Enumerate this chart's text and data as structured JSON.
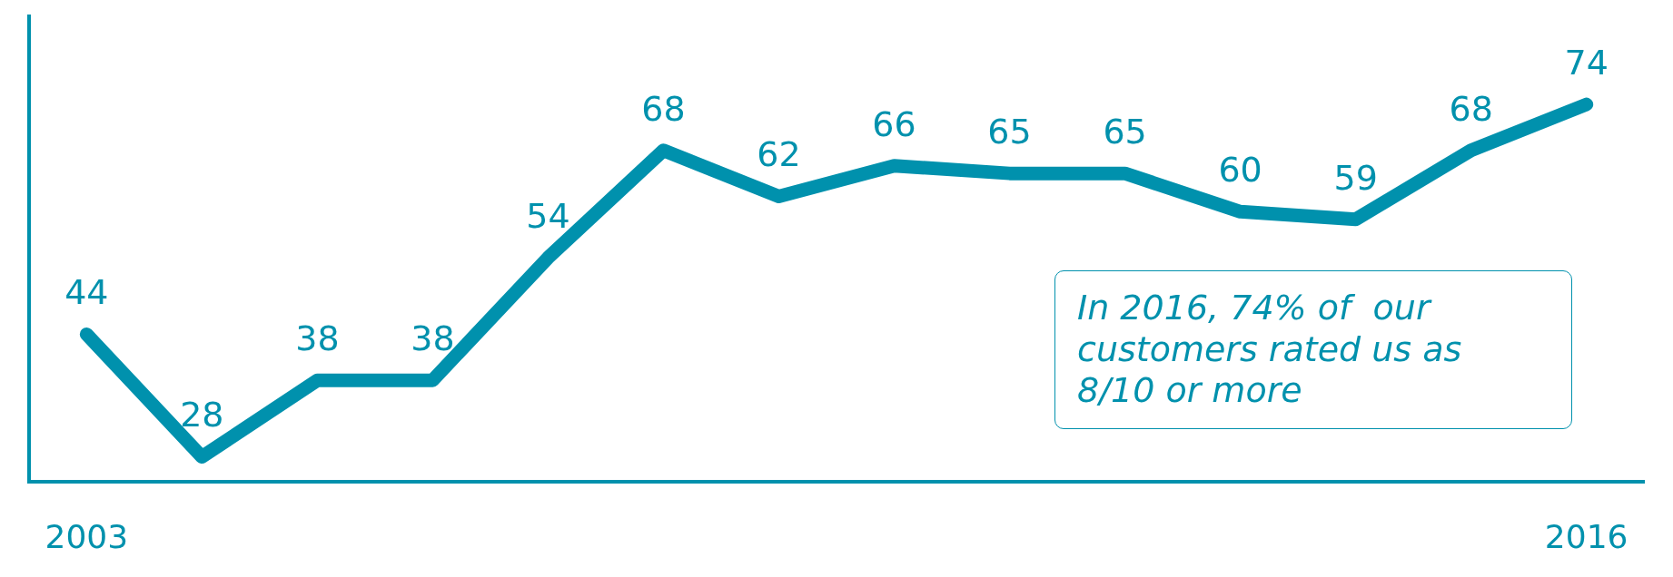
{
  "chart_data": {
    "type": "line",
    "categories": [
      "2003",
      null,
      null,
      null,
      null,
      null,
      null,
      null,
      null,
      null,
      null,
      null,
      null,
      "2016"
    ],
    "series": [
      {
        "color": "#0091ad",
        "values": [
          44,
          28,
          38,
          38,
          54,
          68,
          62,
          66,
          65,
          65,
          60,
          59,
          68,
          74
        ]
      }
    ],
    "data_labels": true,
    "grid": false,
    "legend": false,
    "marker": "none",
    "line_style": "solid",
    "tick_labels": "x",
    "annotations": [
      "In 2016, 74% of  our customers rated us as 8/10 or more"
    ]
  }
}
